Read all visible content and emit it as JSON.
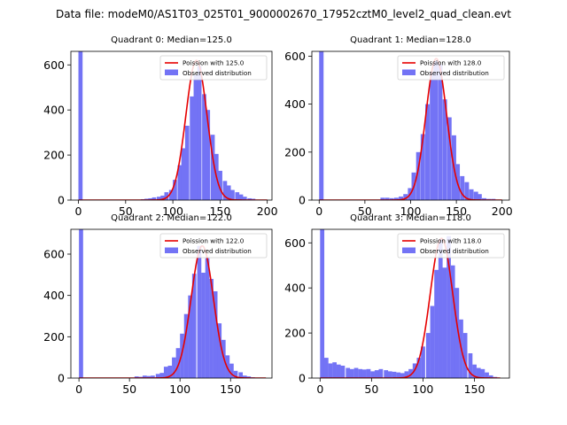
{
  "figure": {
    "suptitle": "Data file: modeM0/AS1T03_025T01_9000002670_17952cztM0_level2_quad_clean.evt"
  },
  "legend": {
    "observed_label": "Observed distribution",
    "observed_color": "#7373f5",
    "poisson_color": "#e60000"
  },
  "chart_data": [
    {
      "type": "bar",
      "title": "Quadrant 0: Median=125.0",
      "legend_poisson": "Poission with 125.0",
      "xlim": [
        -8,
        205
      ],
      "ylim": [
        0,
        660
      ],
      "xticks": [
        0,
        50,
        100,
        150,
        200
      ],
      "yticks": [
        0,
        200,
        400,
        600
      ],
      "bin_width": 4.4,
      "bins": [
        [
          0,
          660
        ],
        [
          66,
          4
        ],
        [
          70,
          6
        ],
        [
          74,
          8
        ],
        [
          78,
          12
        ],
        [
          83,
          15
        ],
        [
          87,
          20
        ],
        [
          91,
          35
        ],
        [
          96,
          45
        ],
        [
          100,
          90
        ],
        [
          105,
          155
        ],
        [
          109,
          230
        ],
        [
          113,
          330
        ],
        [
          118,
          460
        ],
        [
          122,
          555
        ],
        [
          126,
          595
        ],
        [
          131,
          470
        ],
        [
          135,
          400
        ],
        [
          140,
          290
        ],
        [
          144,
          205
        ],
        [
          148,
          130
        ],
        [
          153,
          85
        ],
        [
          157,
          65
        ],
        [
          161,
          45
        ],
        [
          166,
          35
        ],
        [
          170,
          25
        ],
        [
          174,
          15
        ],
        [
          179,
          8
        ],
        [
          183,
          6
        ]
      ],
      "poisson": {
        "mean": 125.0,
        "sigma": 11.2,
        "peak": 620,
        "range": [
          0,
          200
        ]
      }
    },
    {
      "type": "bar",
      "title": "Quadrant 1: Median=128.0",
      "legend_poisson": "Poission with 128.0",
      "xlim": [
        -8,
        208
      ],
      "ylim": [
        0,
        620
      ],
      "xticks": [
        0,
        50,
        100,
        150,
        200
      ],
      "yticks": [
        0,
        200,
        400,
        600
      ],
      "bin_width": 4.8,
      "bins": [
        [
          0,
          620
        ],
        [
          67,
          10
        ],
        [
          72,
          10
        ],
        [
          77,
          8
        ],
        [
          82,
          10
        ],
        [
          87,
          15
        ],
        [
          92,
          25
        ],
        [
          97,
          50
        ],
        [
          101,
          115
        ],
        [
          106,
          200
        ],
        [
          111,
          275
        ],
        [
          116,
          400
        ],
        [
          121,
          535
        ],
        [
          125,
          580
        ],
        [
          130,
          565
        ],
        [
          135,
          420
        ],
        [
          140,
          345
        ],
        [
          145,
          270
        ],
        [
          149,
          150
        ],
        [
          154,
          100
        ],
        [
          159,
          75
        ],
        [
          164,
          45
        ],
        [
          169,
          35
        ],
        [
          173,
          25
        ],
        [
          178,
          8
        ],
        [
          183,
          5
        ],
        [
          188,
          5
        ]
      ],
      "poisson": {
        "mean": 128.0,
        "sigma": 11.3,
        "peak": 590,
        "range": [
          0,
          200
        ]
      }
    },
    {
      "type": "bar",
      "title": "Quadrant 2: Median=122.0",
      "legend_poisson": "Poission with 122.0",
      "xlim": [
        -8,
        191
      ],
      "ylim": [
        0,
        720
      ],
      "xticks": [
        0,
        50,
        100,
        150
      ],
      "yticks": [
        0,
        200,
        400,
        600
      ],
      "bin_width": 4.1,
      "bins": [
        [
          0,
          720
        ],
        [
          55,
          8
        ],
        [
          59,
          6
        ],
        [
          63,
          12
        ],
        [
          67,
          10
        ],
        [
          71,
          12
        ],
        [
          76,
          20
        ],
        [
          80,
          25
        ],
        [
          84,
          55
        ],
        [
          88,
          60
        ],
        [
          92,
          100
        ],
        [
          96,
          145
        ],
        [
          100,
          215
        ],
        [
          104,
          310
        ],
        [
          108,
          400
        ],
        [
          112,
          505
        ],
        [
          117,
          640
        ],
        [
          121,
          510
        ],
        [
          125,
          580
        ],
        [
          129,
          480
        ],
        [
          133,
          420
        ],
        [
          137,
          265
        ],
        [
          141,
          185
        ],
        [
          145,
          110
        ],
        [
          149,
          70
        ],
        [
          153,
          35
        ],
        [
          158,
          28
        ],
        [
          162,
          12
        ],
        [
          166,
          8
        ],
        [
          170,
          4
        ],
        [
          174,
          2
        ]
      ],
      "poisson": {
        "mean": 122.0,
        "sigma": 11.0,
        "peak": 640,
        "range": [
          0,
          185
        ]
      }
    },
    {
      "type": "bar",
      "title": "Quadrant 3: Median=118.0",
      "legend_poisson": "Poission with 118.0",
      "xlim": [
        -8,
        184
      ],
      "ylim": [
        0,
        660
      ],
      "xticks": [
        0,
        50,
        100,
        150
      ],
      "yticks": [
        0,
        200,
        400,
        600
      ],
      "bin_width": 4.1,
      "bins": [
        [
          0,
          660
        ],
        [
          4,
          90
        ],
        [
          8,
          65
        ],
        [
          12,
          70
        ],
        [
          16,
          60
        ],
        [
          20,
          55
        ],
        [
          25,
          45
        ],
        [
          29,
          40
        ],
        [
          33,
          45
        ],
        [
          37,
          40
        ],
        [
          41,
          38
        ],
        [
          45,
          40
        ],
        [
          49,
          30
        ],
        [
          53,
          35
        ],
        [
          57,
          40
        ],
        [
          62,
          35
        ],
        [
          66,
          30
        ],
        [
          70,
          28
        ],
        [
          74,
          25
        ],
        [
          78,
          22
        ],
        [
          82,
          30
        ],
        [
          86,
          40
        ],
        [
          90,
          65
        ],
        [
          94,
          90
        ],
        [
          98,
          140
        ],
        [
          103,
          200
        ],
        [
          107,
          320
        ],
        [
          111,
          480
        ],
        [
          115,
          615
        ],
        [
          119,
          490
        ],
        [
          123,
          630
        ],
        [
          127,
          500
        ],
        [
          131,
          400
        ],
        [
          135,
          260
        ],
        [
          139,
          200
        ],
        [
          144,
          110
        ],
        [
          148,
          60
        ],
        [
          152,
          45
        ],
        [
          156,
          40
        ],
        [
          160,
          25
        ],
        [
          164,
          12
        ],
        [
          168,
          5
        ]
      ],
      "poisson": {
        "mean": 118.0,
        "sigma": 10.9,
        "peak": 620,
        "range": [
          0,
          175
        ]
      }
    }
  ]
}
